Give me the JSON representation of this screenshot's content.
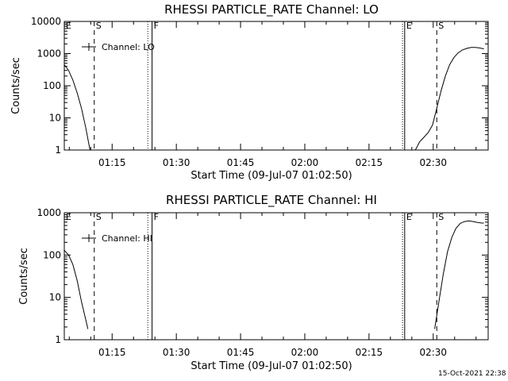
{
  "footer": {
    "timestamp": "15-Oct-2021 22:38"
  },
  "chart_data": [
    {
      "type": "line",
      "title": "RHESSI PARTICLE_RATE Channel: LO",
      "xlabel": "Start Time (09-Jul-07 01:02:50)",
      "ylabel": "Counts/sec",
      "yscale": "log",
      "xlim_minutes": [
        1.0,
        100.0
      ],
      "ylim": [
        1,
        10000
      ],
      "ytick_labels": [
        "1",
        "10",
        "100",
        "1000",
        "10000"
      ],
      "xtick_labels": [
        "01:15",
        "01:30",
        "01:45",
        "02:00",
        "02:15",
        "02:30"
      ],
      "xtick_minutes": [
        12.17,
        27.17,
        42.17,
        57.17,
        72.17,
        87.17
      ],
      "legend": {
        "label": "Channel: LO",
        "placement": "top-left"
      },
      "markers": [
        {
          "label": "E",
          "minute": 1.0,
          "style": "solid"
        },
        {
          "label": "S",
          "minute": 8.0,
          "style": "dash"
        },
        {
          "label": "",
          "minute": 20.5,
          "style": "dot"
        },
        {
          "label": "F",
          "minute": 21.5,
          "style": "solid"
        },
        {
          "label": "",
          "minute": 80.0,
          "style": "dot"
        },
        {
          "label": "E",
          "minute": 80.5,
          "style": "solid"
        },
        {
          "label": "S",
          "minute": 88.0,
          "style": "dash"
        },
        {
          "label": "",
          "minute": 100.0,
          "style": "dashdot"
        }
      ],
      "series": [
        {
          "segments": [
            [
              [
                1.0,
                450
              ],
              [
                2.0,
                300
              ],
              [
                3.0,
                150
              ],
              [
                4.0,
                60
              ],
              [
                5.0,
                20
              ],
              [
                6.0,
                5
              ],
              [
                7.0,
                1.0
              ]
            ],
            [
              [
                83.0,
                1
              ],
              [
                84.0,
                1.8
              ],
              [
                85.0,
                2.5
              ],
              [
                86.0,
                3.5
              ],
              [
                87.0,
                6
              ],
              [
                88.0,
                20
              ],
              [
                89.0,
                70
              ],
              [
                90.0,
                200
              ],
              [
                91.0,
                450
              ],
              [
                92.0,
                750
              ],
              [
                93.0,
                1050
              ],
              [
                94.0,
                1300
              ],
              [
                95.0,
                1450
              ],
              [
                96.0,
                1550
              ],
              [
                97.0,
                1550
              ],
              [
                98.0,
                1500
              ],
              [
                99.0,
                1400
              ]
            ]
          ]
        }
      ]
    },
    {
      "type": "line",
      "title": "RHESSI PARTICLE_RATE Channel: HI",
      "xlabel": "Start Time (09-Jul-07 01:02:50)",
      "ylabel": "Counts/sec",
      "yscale": "log",
      "xlim_minutes": [
        1.0,
        100.0
      ],
      "ylim": [
        1,
        1000
      ],
      "ytick_labels": [
        "1",
        "10",
        "100",
        "1000"
      ],
      "xtick_labels": [
        "01:15",
        "01:30",
        "01:45",
        "02:00",
        "02:15",
        "02:30"
      ],
      "xtick_minutes": [
        12.17,
        27.17,
        42.17,
        57.17,
        72.17,
        87.17
      ],
      "legend": {
        "label": "Channel: HI",
        "placement": "top-left"
      },
      "markers": [
        {
          "label": "E",
          "minute": 1.0,
          "style": "solid"
        },
        {
          "label": "S",
          "minute": 8.0,
          "style": "dash"
        },
        {
          "label": "",
          "minute": 20.5,
          "style": "dot"
        },
        {
          "label": "F",
          "minute": 21.5,
          "style": "solid"
        },
        {
          "label": "",
          "minute": 80.0,
          "style": "dot"
        },
        {
          "label": "E",
          "minute": 80.5,
          "style": "solid"
        },
        {
          "label": "S",
          "minute": 88.0,
          "style": "dash"
        },
        {
          "label": "",
          "minute": 100.0,
          "style": "dashdot"
        }
      ],
      "series": [
        {
          "segments": [
            [
              [
                1.0,
                130
              ],
              [
                2.0,
                100
              ],
              [
                3.0,
                60
              ],
              [
                4.0,
                25
              ],
              [
                5.0,
                8
              ],
              [
                6.0,
                3
              ],
              [
                6.5,
                1.8
              ]
            ],
            [
              [
                87.5,
                1.8
              ],
              [
                88.5,
                8
              ],
              [
                89.5,
                35
              ],
              [
                90.5,
                120
              ],
              [
                91.5,
                260
              ],
              [
                92.5,
                430
              ],
              [
                93.5,
                560
              ],
              [
                94.5,
                620
              ],
              [
                95.5,
                640
              ],
              [
                96.5,
                620
              ],
              [
                97.5,
                590
              ],
              [
                98.5,
                570
              ],
              [
                99.0,
                570
              ]
            ]
          ]
        }
      ]
    }
  ]
}
